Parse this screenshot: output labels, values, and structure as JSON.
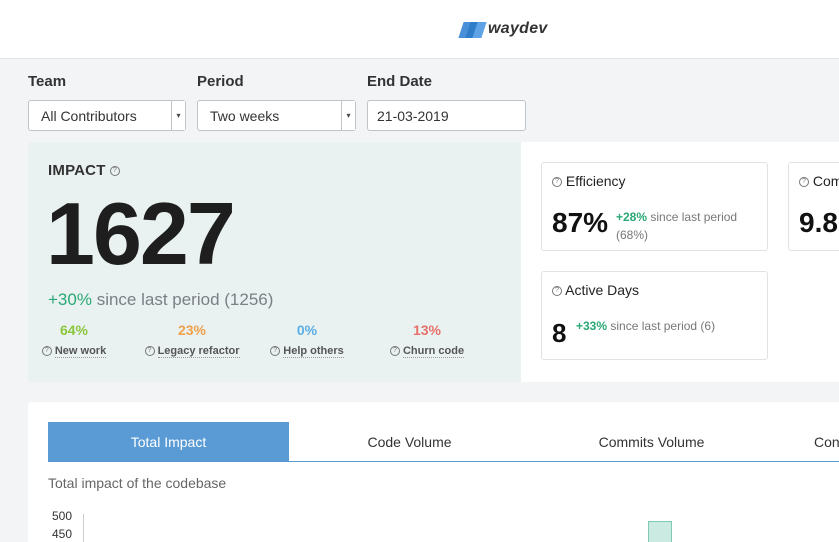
{
  "header": {
    "logo_text": "waydev"
  },
  "filters": {
    "team": {
      "label": "Team",
      "value": "All Contributors"
    },
    "period": {
      "label": "Period",
      "value": "Two weeks"
    },
    "end_date": {
      "label": "End Date",
      "value": "21-03-2019"
    }
  },
  "impact": {
    "title": "IMPACT",
    "value": "1627",
    "change": "+30%",
    "since": "since last period (1256)",
    "breakdown": [
      {
        "pct": "64%",
        "label": "New work",
        "color": "#8cc63f"
      },
      {
        "pct": "23%",
        "label": "Legacy refactor",
        "color": "#f0a04b"
      },
      {
        "pct": "0%",
        "label": "Help others",
        "color": "#5aaee8"
      },
      {
        "pct": "13%",
        "label": "Churn code",
        "color": "#e8706a"
      }
    ]
  },
  "metrics": {
    "efficiency": {
      "title": "Efficiency",
      "value": "87%",
      "change": "+28%",
      "since": "since last period",
      "prev": "(68%)"
    },
    "commits": {
      "title": "Com",
      "value": "9.8"
    },
    "active_days": {
      "title": "Active Days",
      "value": "8",
      "change": "+33%",
      "since": "since last period (6)"
    }
  },
  "tabs": [
    "Total Impact",
    "Code Volume",
    "Commits Volume",
    "Con"
  ],
  "chart": {
    "subtitle": "Total impact of the codebase"
  },
  "chart_data": {
    "type": "bar",
    "title": "",
    "yticks": [
      "500",
      "450"
    ],
    "ylabel": "",
    "xlabel": ""
  },
  "colors": {
    "accent": "#5a9bd5",
    "positive": "#2aa876"
  }
}
